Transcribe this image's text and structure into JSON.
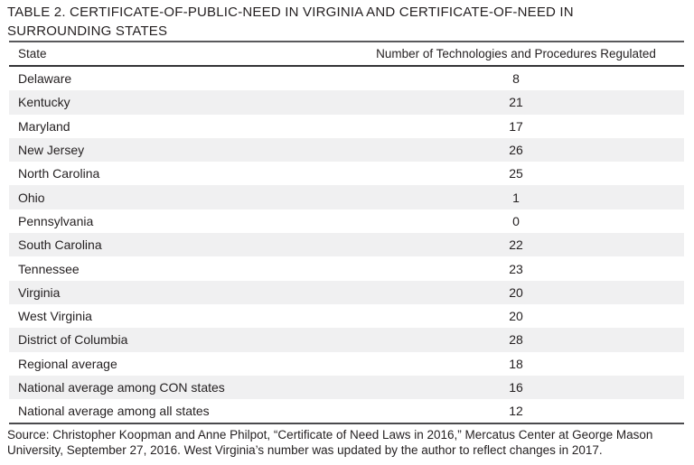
{
  "title": "TABLE 2. CERTIFICATE-OF-PUBLIC-NEED IN VIRGINIA AND CERTIFICATE-OF-NEED IN SURROUNDING STATES",
  "table": {
    "columns": [
      "State",
      "Number of Technologies and Procedures Regulated"
    ],
    "rows": [
      {
        "state": "Delaware",
        "value": "8"
      },
      {
        "state": "Kentucky",
        "value": "21"
      },
      {
        "state": "Maryland",
        "value": "17"
      },
      {
        "state": "New Jersey",
        "value": "26"
      },
      {
        "state": "North Carolina",
        "value": "25"
      },
      {
        "state": "Ohio",
        "value": "1"
      },
      {
        "state": "Pennsylvania",
        "value": "0"
      },
      {
        "state": "South Carolina",
        "value": "22"
      },
      {
        "state": "Tennessee",
        "value": "23"
      },
      {
        "state": "Virginia",
        "value": "20"
      },
      {
        "state": "West Virginia",
        "value": "20"
      },
      {
        "state": "District of Columbia",
        "value": "28"
      },
      {
        "state": "Regional average",
        "value": "18"
      },
      {
        "state": "National average among CON states",
        "value": "16"
      },
      {
        "state": "National average among all states",
        "value": "12"
      }
    ]
  },
  "source": "Source: Christopher Koopman and Anne Philpot, “Certificate of Need Laws in 2016,” Mercatus Center at George Mason University, September 27, 2016. West Virginia’s number was updated by the author to reflect changes in 2017.",
  "colors": {
    "text": "#231f20",
    "stripe": "#f0f0f1",
    "rule_top": "#59595c",
    "rule_header": "#343437",
    "rule_bottom": "#4a4a4d"
  },
  "chart_data": {
    "type": "table",
    "title": "TABLE 2. CERTIFICATE-OF-PUBLIC-NEED IN VIRGINIA AND CERTIFICATE-OF-NEED IN SURROUNDING STATES",
    "columns": [
      "State",
      "Number of Technologies and Procedures Regulated"
    ],
    "categories": [
      "Delaware",
      "Kentucky",
      "Maryland",
      "New Jersey",
      "North Carolina",
      "Ohio",
      "Pennsylvania",
      "South Carolina",
      "Tennessee",
      "Virginia",
      "West Virginia",
      "District of Columbia",
      "Regional average",
      "National average among CON states",
      "National average among all states"
    ],
    "values": [
      8,
      21,
      17,
      26,
      25,
      1,
      0,
      22,
      23,
      20,
      20,
      28,
      18,
      16,
      12
    ],
    "source": "Source: Christopher Koopman and Anne Philpot, “Certificate of Need Laws in 2016,” Mercatus Center at George Mason University, September 27, 2016. West Virginia’s number was updated by the author to reflect changes in 2017."
  }
}
